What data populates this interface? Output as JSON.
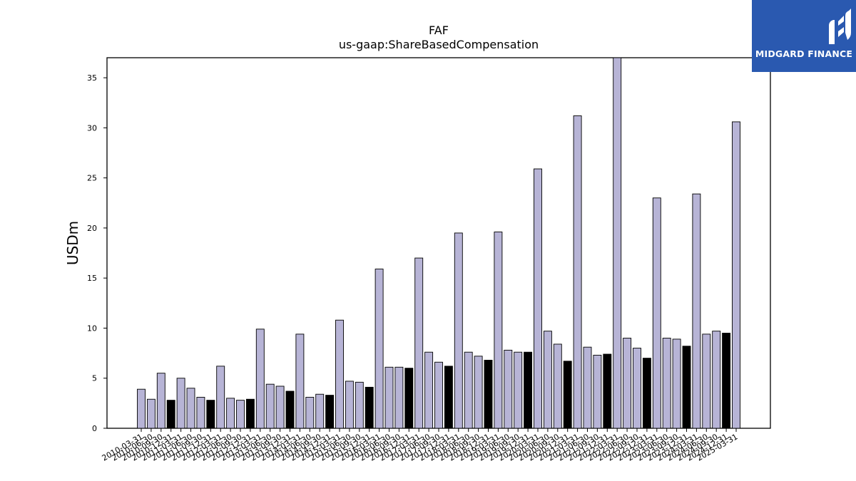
{
  "chart_data": {
    "type": "bar",
    "title": "FAF",
    "subtitle": "us-gaap:ShareBasedCompensation",
    "ylabel": "USDm",
    "xlabel": "",
    "ylim": [
      0,
      37
    ],
    "yticks": [
      0,
      5,
      10,
      15,
      20,
      25,
      30,
      35
    ],
    "grid": false,
    "colors": {
      "quarter": "#b7b4d6",
      "annual": "#000000",
      "edge": "#000000"
    },
    "categories": [
      "2010-03-31",
      "2010-06-30",
      "2010-09-30",
      "2010-12-31",
      "2011-03-31",
      "2011-06-30",
      "2011-09-30",
      "2011-12-31",
      "2012-03-31",
      "2012-06-30",
      "2012-09-30",
      "2012-12-31",
      "2013-03-31",
      "2013-06-30",
      "2013-09-30",
      "2013-12-31",
      "2014-03-31",
      "2014-06-30",
      "2014-09-30",
      "2014-12-31",
      "2015-03-31",
      "2015-06-30",
      "2015-09-30",
      "2015-12-31",
      "2016-03-31",
      "2016-06-30",
      "2016-09-30",
      "2016-12-31",
      "2017-03-31",
      "2017-06-30",
      "2017-09-30",
      "2017-12-31",
      "2018-03-31",
      "2018-06-30",
      "2018-09-30",
      "2018-12-31",
      "2019-03-31",
      "2019-06-30",
      "2019-09-30",
      "2019-12-31",
      "2020-03-31",
      "2020-06-30",
      "2020-09-30",
      "2020-12-31",
      "2021-03-31",
      "2021-06-30",
      "2021-09-30",
      "2021-12-31",
      "2022-03-31",
      "2022-06-30",
      "2022-09-30",
      "2022-12-31",
      "2023-03-31",
      "2023-06-30",
      "2023-09-30",
      "2023-12-31",
      "2024-03-31",
      "2024-06-30",
      "2024-09-30",
      "2024-12-31",
      "2025-03-31"
    ],
    "values": [
      3.9,
      2.9,
      5.5,
      2.8,
      5.0,
      4.0,
      3.1,
      2.8,
      6.2,
      3.0,
      2.8,
      2.9,
      9.9,
      4.4,
      4.2,
      3.7,
      9.4,
      3.1,
      3.4,
      3.3,
      10.8,
      4.7,
      4.6,
      4.1,
      15.9,
      6.1,
      6.1,
      6.0,
      17.0,
      7.6,
      6.6,
      6.2,
      19.5,
      7.6,
      7.2,
      6.8,
      19.6,
      7.8,
      7.6,
      7.6,
      25.9,
      9.7,
      8.4,
      6.7,
      31.2,
      8.1,
      7.3,
      7.4,
      37.0,
      9.0,
      8.0,
      7.0,
      23.0,
      9.0,
      8.9,
      8.2,
      23.4,
      9.4,
      9.7,
      9.5,
      30.6
    ],
    "highlight_every": 4,
    "highlight_offset": 3
  },
  "logo": {
    "text": "MIDGARD FINANCE",
    "icon": "midgard-logo-icon"
  }
}
